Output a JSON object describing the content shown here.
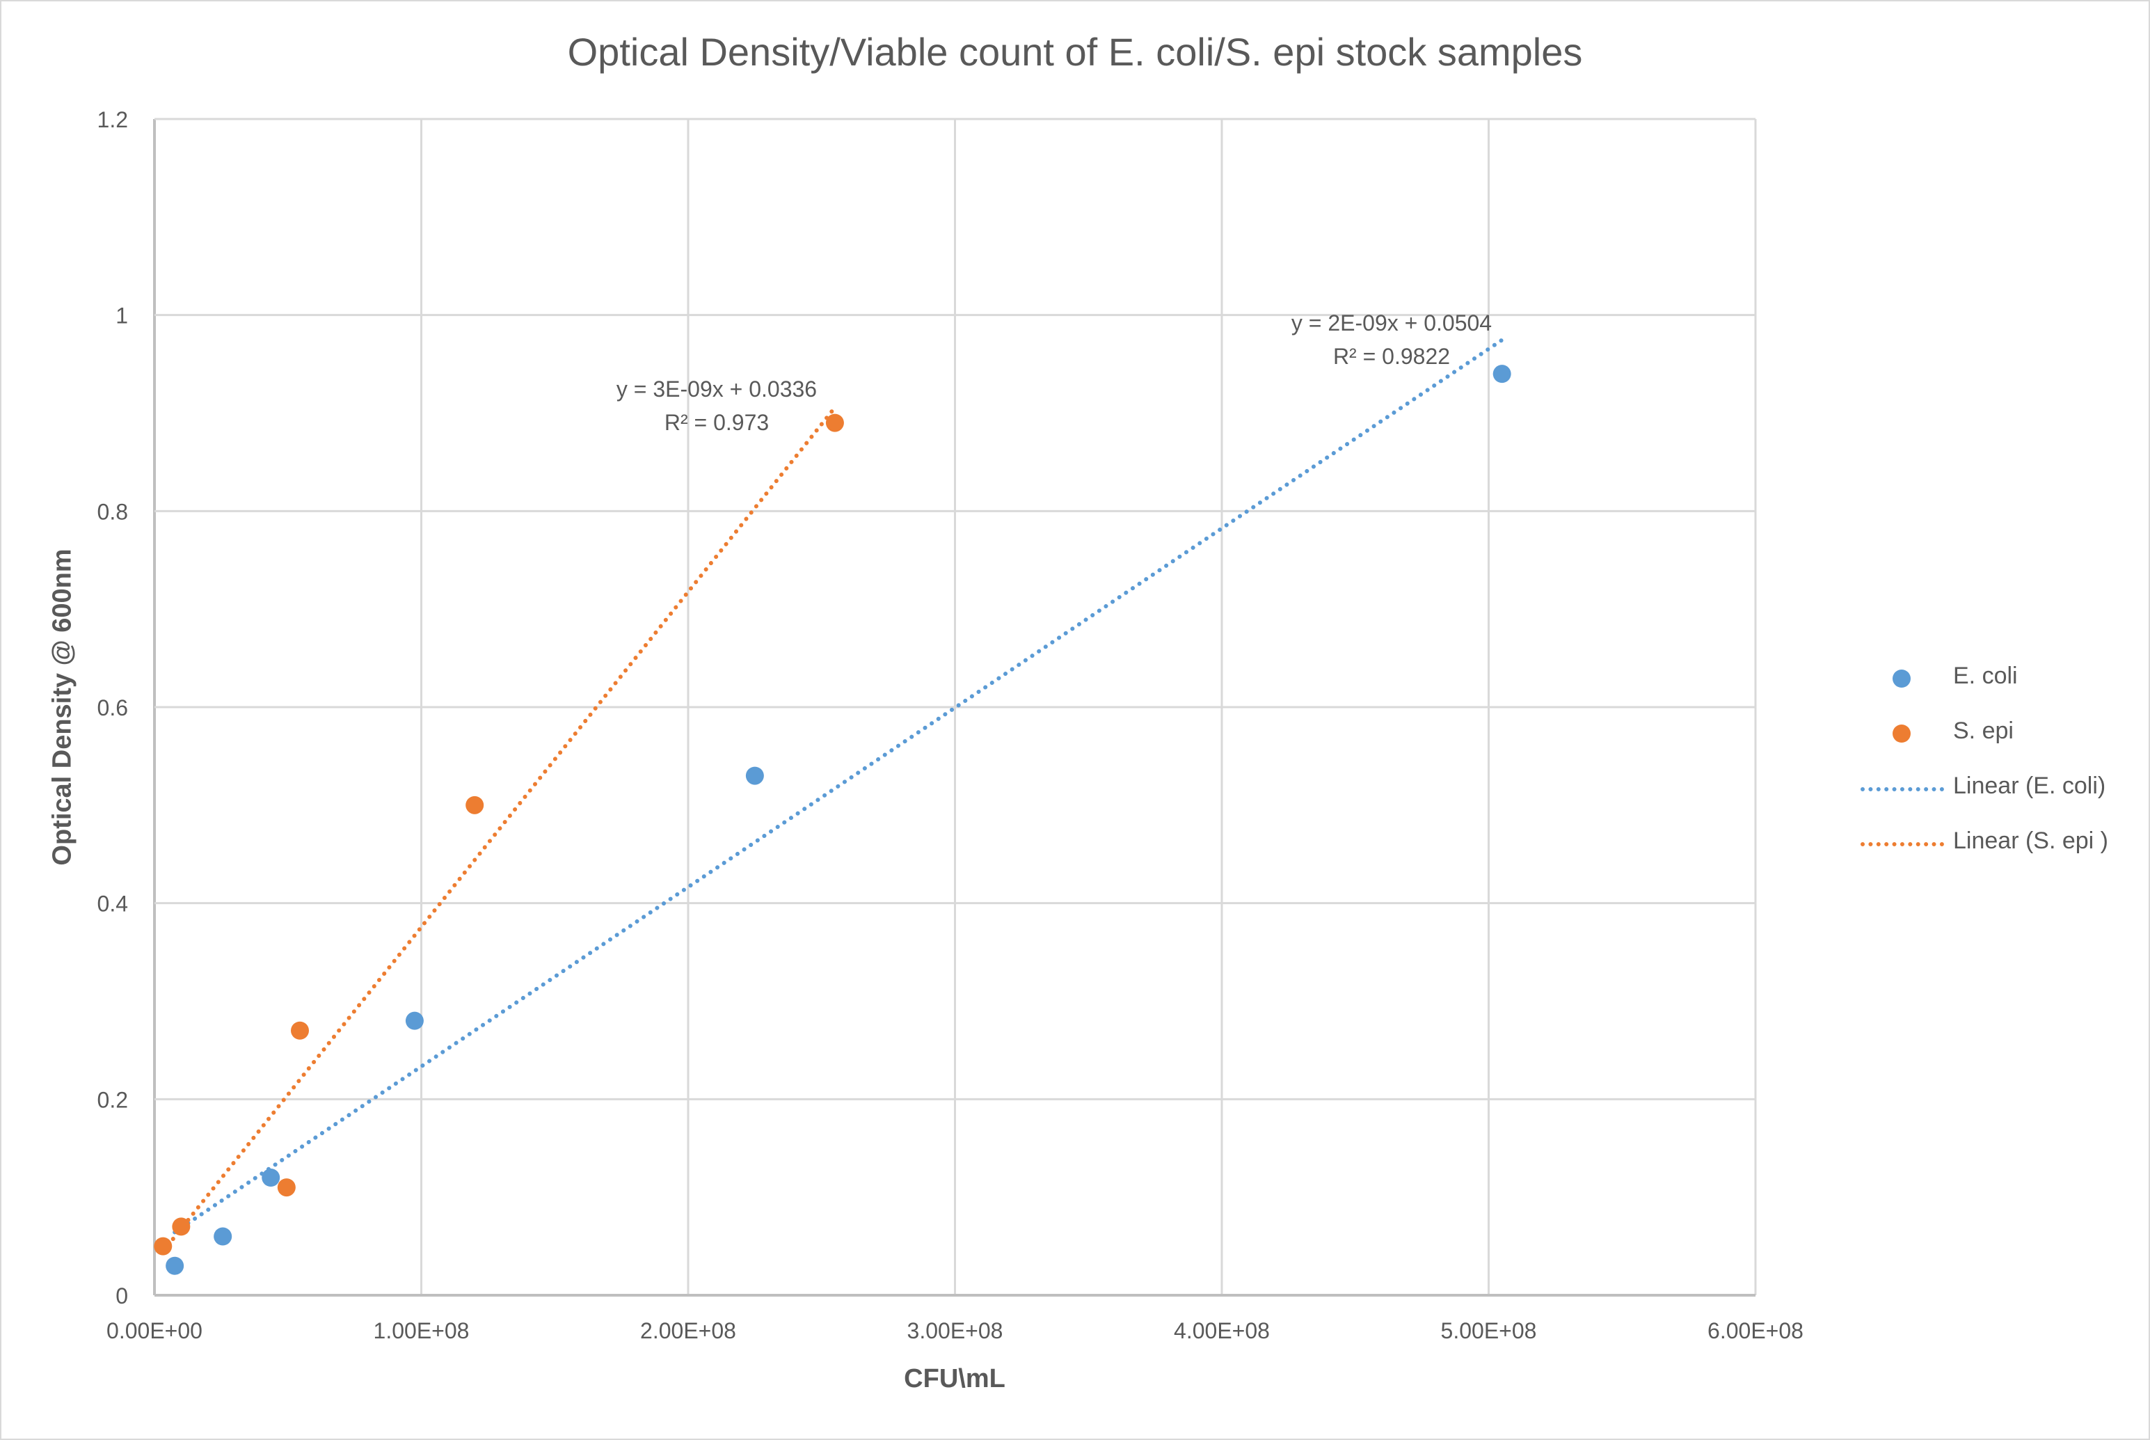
{
  "chart_data": {
    "type": "scatter",
    "title": "Optical Density/Viable count of E. coli/S. epi stock samples",
    "xlabel": "CFU\\mL",
    "ylabel": "Optical Density @ 600nm",
    "xlim": [
      0,
      600000000
    ],
    "ylim": [
      0,
      1.2
    ],
    "x_ticks": [
      "0.00E+00",
      "1.00E+08",
      "2.00E+08",
      "3.00E+08",
      "4.00E+08",
      "5.00E+08",
      "6.00E+08"
    ],
    "y_ticks": [
      "0",
      "0.2",
      "0.4",
      "0.6",
      "0.8",
      "1",
      "1.2"
    ],
    "grid": true,
    "legend_position": "right",
    "series": [
      {
        "name": "E. coli",
        "color": "#5b9bd5",
        "points": [
          {
            "x": 7600000,
            "y": 0.03
          },
          {
            "x": 25600000,
            "y": 0.06
          },
          {
            "x": 43600000,
            "y": 0.12
          },
          {
            "x": 97500000,
            "y": 0.28
          },
          {
            "x": 225000000,
            "y": 0.53
          },
          {
            "x": 505000000,
            "y": 0.94
          }
        ],
        "trendline": {
          "name": "Linear (E. coli)",
          "type": "linear",
          "slope": 1.83e-09,
          "intercept": 0.0504,
          "equation": "y = 2E-09x + 0.0504",
          "r_squared": "R² = 0.9822",
          "x_range": [
            7600000,
            505000000
          ]
        }
      },
      {
        "name": "S. epi",
        "color": "#ed7d31",
        "points": [
          {
            "x": 3200000,
            "y": 0.05
          },
          {
            "x": 10000000,
            "y": 0.07
          },
          {
            "x": 49500000,
            "y": 0.11
          },
          {
            "x": 54500000,
            "y": 0.27
          },
          {
            "x": 120000000,
            "y": 0.5
          },
          {
            "x": 255000000,
            "y": 0.89
          }
        ],
        "trendline": {
          "name": "Linear (S. epi )",
          "type": "linear",
          "slope": 3.42e-09,
          "intercept": 0.0336,
          "equation": "y = 3E-09x + 0.0336",
          "r_squared": "R² = 0.973",
          "x_range": [
            3200000,
            255000000
          ]
        }
      }
    ],
    "annotations": [
      {
        "text": "y = 2E-09x + 0.0504",
        "series": "E. coli"
      },
      {
        "text": "R² = 0.9822",
        "series": "E. coli"
      },
      {
        "text": "y = 3E-09x + 0.0336",
        "series": "S. epi"
      },
      {
        "text": "R² = 0.973",
        "series": "S. epi"
      }
    ]
  },
  "legend": {
    "items": [
      {
        "label": "E. coli",
        "kind": "marker",
        "color": "#5b9bd5"
      },
      {
        "label": "S. epi",
        "kind": "marker",
        "color": "#ed7d31"
      },
      {
        "label": "Linear (E. coli)",
        "kind": "dotted-line",
        "color": "#5b9bd5"
      },
      {
        "label": "Linear (S. epi )",
        "kind": "dotted-line",
        "color": "#ed7d31"
      }
    ]
  },
  "colors": {
    "gridline": "#d9d9d9",
    "axis": "#bfbfbf",
    "text": "#595959"
  }
}
